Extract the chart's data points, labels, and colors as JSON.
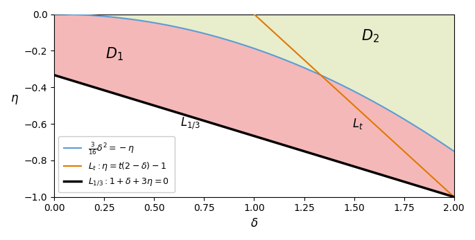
{
  "delta_range": [
    0.0,
    2.0
  ],
  "eta_range": [
    -1.0,
    0.0
  ],
  "blue_label": "$\\frac{3}{16}\\delta^2 = -\\eta$",
  "orange_label": "$L_t: \\eta = t(2-\\delta) - 1$",
  "black_label": "$L_{1/3}: 1 + \\delta + 3\\eta = 0$",
  "D1_label": "$D_1$",
  "D2_label": "$D_2$",
  "Lt_label": "$L_t$",
  "L13_label": "$L_{1/3}$",
  "blue_color": "#5b9bd5",
  "orange_color": "#e07800",
  "black_color": "#000000",
  "D1_color": "#f4b8b8",
  "D2_color": "#e8edcc",
  "xlabel": "$\\delta$",
  "ylabel": "$\\eta$",
  "t_param": 1.0,
  "figsize": [
    6.85,
    3.47
  ],
  "dpi": 100
}
